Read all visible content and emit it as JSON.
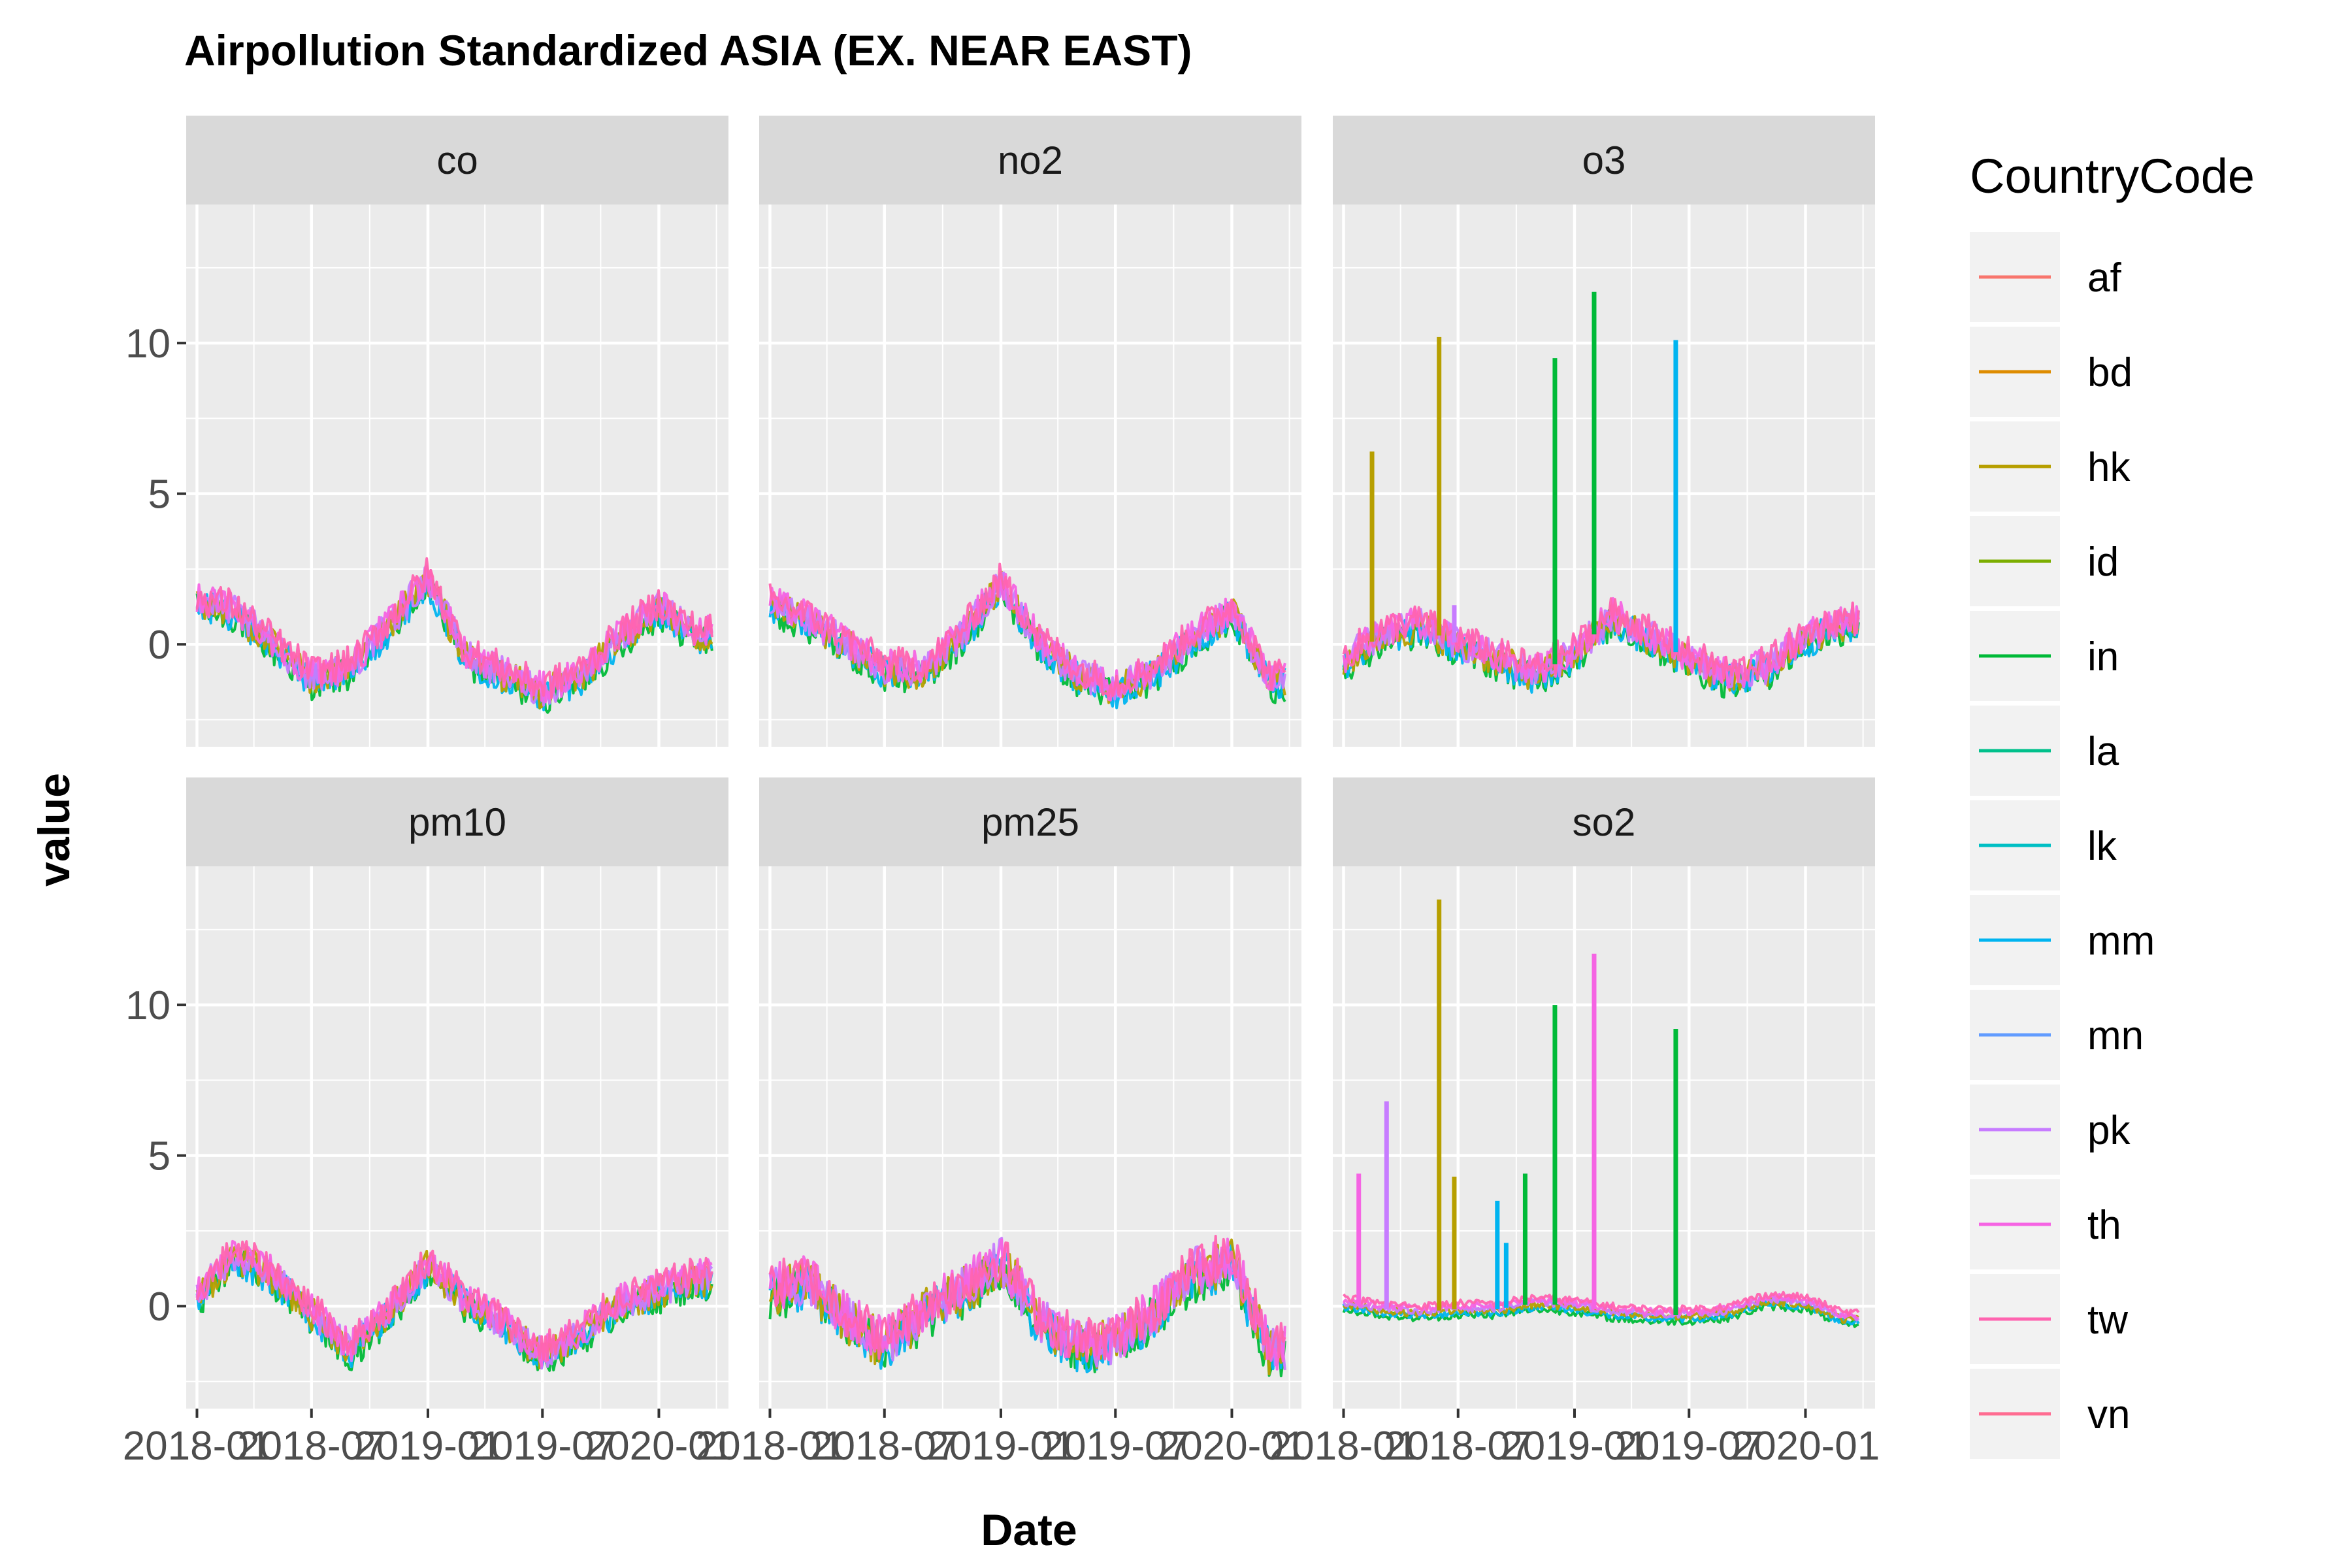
{
  "chart_data": {
    "type": "line",
    "title": "Airpollution Standardized ASIA (EX. NEAR EAST)",
    "xlabel": "Date",
    "ylabel": "value",
    "facets": [
      "co",
      "no2",
      "o3",
      "pm10",
      "pm25",
      "so2"
    ],
    "x_tick_labels": [
      "2018-01",
      "2018-07",
      "2019-01",
      "2019-07",
      "2020-01"
    ],
    "y_ticks": [
      0,
      5,
      10
    ],
    "ylim": [
      -3.4,
      14.6
    ],
    "legend": {
      "title": "CountryCode",
      "position": "right",
      "entries": [
        {
          "code": "af",
          "color": "#F8766D"
        },
        {
          "code": "bd",
          "color": "#DE8C00"
        },
        {
          "code": "hk",
          "color": "#B79F00"
        },
        {
          "code": "id",
          "color": "#7CAE00"
        },
        {
          "code": "in",
          "color": "#00BA38"
        },
        {
          "code": "la",
          "color": "#00C08B"
        },
        {
          "code": "lk",
          "color": "#00BFC4"
        },
        {
          "code": "mm",
          "color": "#00B4F0"
        },
        {
          "code": "mn",
          "color": "#619CFF"
        },
        {
          "code": "pk",
          "color": "#C77CFF"
        },
        {
          "code": "th",
          "color": "#F564E3"
        },
        {
          "code": "tw",
          "color": "#FF64B0"
        },
        {
          "code": "vn",
          "color": "#FF6C91"
        }
      ]
    },
    "line_colors": [
      "#00BA38",
      "#00B4F0",
      "#B79F00",
      "#C77CFF",
      "#F564E3",
      "#FF64B0"
    ],
    "panel_colors": {
      "background": "#EBEBEB",
      "strip": "#D9D9D9",
      "grid": "#FFFFFF"
    },
    "series": [
      {
        "facet": "co",
        "x": [
          "2018-01-01",
          "2018-03-01",
          "2018-05-01",
          "2018-07-01",
          "2018-09-01",
          "2018-11-01",
          "2019-01-01",
          "2019-03-01",
          "2019-05-01",
          "2019-07-01",
          "2019-09-01",
          "2019-11-01",
          "2020-01-01",
          "2020-03-01"
        ],
        "y": [
          1.4,
          1.1,
          0.0,
          -1.1,
          -0.8,
          0.6,
          2.2,
          -0.4,
          -1.0,
          -1.6,
          -1.0,
          0.2,
          1.2,
          0.3
        ]
      },
      {
        "facet": "no2",
        "x": [
          "2018-01-01",
          "2018-03-01",
          "2018-05-01",
          "2018-07-01",
          "2018-09-01",
          "2018-11-01",
          "2019-01-01",
          "2019-03-01",
          "2019-05-01",
          "2019-07-01",
          "2019-09-01",
          "2019-11-01",
          "2020-01-01",
          "2020-03-01"
        ],
        "y": [
          1.3,
          0.8,
          0.0,
          -0.8,
          -0.9,
          0.3,
          2.0,
          0.1,
          -1.0,
          -1.5,
          -0.9,
          0.2,
          1.1,
          -1.2
        ]
      },
      {
        "facet": "o3",
        "x": [
          "2018-01-01",
          "2018-03-01",
          "2018-05-01",
          "2018-07-01",
          "2018-09-01",
          "2018-11-01",
          "2019-01-01",
          "2019-03-01",
          "2019-05-01",
          "2019-07-01",
          "2019-09-01",
          "2019-11-01",
          "2020-01-01",
          "2020-03-01"
        ],
        "y": [
          -0.6,
          0.3,
          0.6,
          0.0,
          -0.5,
          -1.0,
          -0.3,
          0.9,
          0.2,
          -0.5,
          -1.1,
          -0.8,
          0.2,
          0.7
        ]
      },
      {
        "facet": "pm10",
        "x": [
          "2018-01-01",
          "2018-03-01",
          "2018-05-01",
          "2018-07-01",
          "2018-09-01",
          "2018-11-01",
          "2019-01-01",
          "2019-03-01",
          "2019-05-01",
          "2019-07-01",
          "2019-09-01",
          "2019-11-01",
          "2020-01-01",
          "2020-03-01"
        ],
        "y": [
          0.3,
          1.7,
          1.0,
          -0.2,
          -1.4,
          -0.2,
          1.4,
          0.2,
          -0.6,
          -1.6,
          -0.9,
          0.1,
          0.5,
          0.9
        ]
      },
      {
        "facet": "pm25",
        "x": [
          "2018-01-01",
          "2018-03-01",
          "2018-05-01",
          "2018-07-01",
          "2018-09-01",
          "2018-11-01",
          "2019-01-01",
          "2019-03-01",
          "2019-05-01",
          "2019-07-01",
          "2019-09-01",
          "2019-11-01",
          "2020-01-01",
          "2020-03-01"
        ],
        "y": [
          0.5,
          0.8,
          -0.4,
          -1.3,
          -0.2,
          0.5,
          1.5,
          -0.4,
          -1.3,
          -1.2,
          -0.2,
          1.1,
          1.5,
          -1.5
        ]
      },
      {
        "facet": "so2",
        "x": [
          "2018-01-01",
          "2018-03-01",
          "2018-05-01",
          "2018-07-01",
          "2018-09-01",
          "2018-11-01",
          "2019-01-01",
          "2019-03-01",
          "2019-05-01",
          "2019-07-01",
          "2019-09-01",
          "2019-11-01",
          "2020-01-01",
          "2020-03-01"
        ],
        "y": [
          0.1,
          -0.1,
          -0.2,
          -0.1,
          -0.1,
          0.1,
          0.0,
          -0.2,
          -0.3,
          -0.3,
          -0.2,
          0.2,
          0.1,
          -0.4
        ]
      }
    ],
    "spikes": [
      {
        "facet": "o3",
        "x": "2018-02-15",
        "y": 6.4,
        "color": "#B79F00"
      },
      {
        "facet": "o3",
        "x": "2018-06-01",
        "y": 10.2,
        "color": "#B79F00"
      },
      {
        "facet": "o3",
        "x": "2018-06-25",
        "y": 1.3,
        "color": "#C77CFF"
      },
      {
        "facet": "o3",
        "x": "2018-12-01",
        "y": 9.5,
        "color": "#00BA38"
      },
      {
        "facet": "o3",
        "x": "2019-02-01",
        "y": 11.7,
        "color": "#00BA38"
      },
      {
        "facet": "o3",
        "x": "2019-06-10",
        "y": 10.1,
        "color": "#00B4F0"
      },
      {
        "facet": "so2",
        "x": "2018-01-25",
        "y": 4.4,
        "color": "#F564E3"
      },
      {
        "facet": "so2",
        "x": "2018-03-10",
        "y": 6.8,
        "color": "#C77CFF"
      },
      {
        "facet": "so2",
        "x": "2018-06-01",
        "y": 13.5,
        "color": "#B79F00"
      },
      {
        "facet": "so2",
        "x": "2018-06-25",
        "y": 4.3,
        "color": "#B79F00"
      },
      {
        "facet": "so2",
        "x": "2018-09-01",
        "y": 3.5,
        "color": "#00B4F0"
      },
      {
        "facet": "so2",
        "x": "2018-09-15",
        "y": 2.1,
        "color": "#00B4F0"
      },
      {
        "facet": "so2",
        "x": "2018-10-15",
        "y": 4.4,
        "color": "#00BA38"
      },
      {
        "facet": "so2",
        "x": "2018-12-01",
        "y": 10.0,
        "color": "#00BA38"
      },
      {
        "facet": "so2",
        "x": "2019-02-01",
        "y": 11.7,
        "color": "#F564E3"
      },
      {
        "facet": "so2",
        "x": "2019-06-10",
        "y": 9.2,
        "color": "#00BA38"
      }
    ]
  }
}
